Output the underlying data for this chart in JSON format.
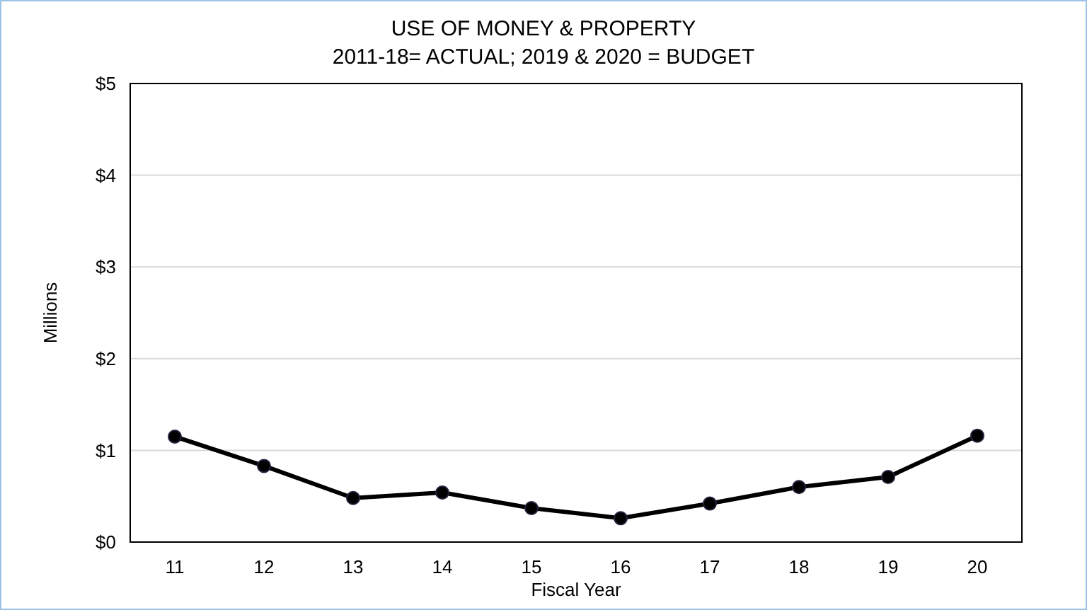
{
  "chart_data": {
    "type": "line",
    "title": "USE OF MONEY & PROPERTY",
    "subtitle": "2011-18= ACTUAL; 2019 & 2020 = BUDGET",
    "xlabel": "Fiscal Year",
    "ylabel": "Millions",
    "categories": [
      "11",
      "12",
      "13",
      "14",
      "15",
      "16",
      "17",
      "18",
      "19",
      "20"
    ],
    "series": [
      {
        "color": "#000000",
        "values": [
          1.15,
          0.83,
          0.48,
          0.54,
          0.37,
          0.26,
          0.42,
          0.6,
          0.71,
          1.16
        ]
      }
    ],
    "ylim": [
      0,
      5
    ],
    "yticks": [
      {
        "value": 0,
        "label": "$0"
      },
      {
        "value": 1,
        "label": "$1"
      },
      {
        "value": 2,
        "label": "$2"
      },
      {
        "value": 3,
        "label": "$3"
      },
      {
        "value": 4,
        "label": "$4"
      },
      {
        "value": 5,
        "label": "$5"
      }
    ],
    "grid": "y",
    "marker": "circle",
    "line_style": "solid"
  }
}
